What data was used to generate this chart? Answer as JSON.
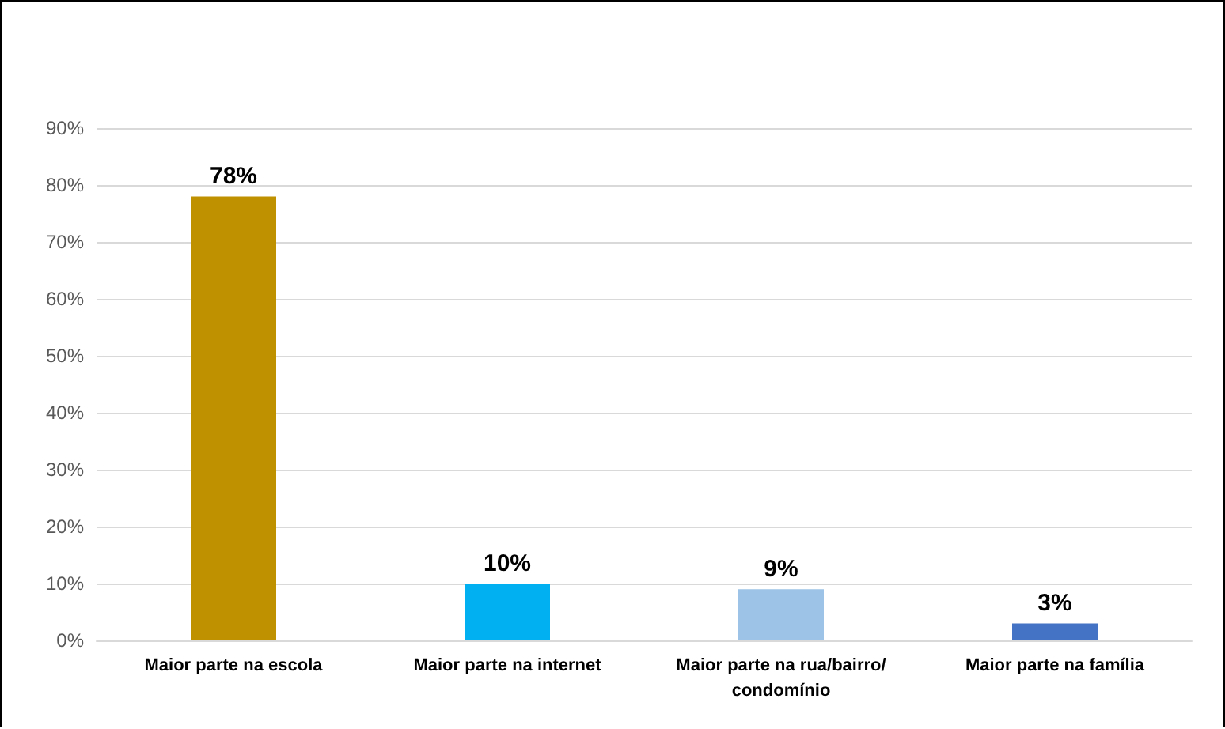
{
  "chart_data": {
    "type": "bar",
    "categories": [
      "Maior parte na escola",
      "Maior parte na internet",
      "Maior parte na rua/bairro/condomínio",
      "Maior parte na família"
    ],
    "values": [
      78,
      10,
      9,
      3
    ],
    "colors": [
      "#bf9000",
      "#00b0f0",
      "#9dc3e6",
      "#4472c4"
    ],
    "value_labels": [
      "78%",
      "10%",
      "9%",
      "3%"
    ],
    "ylim": [
      0,
      90
    ],
    "yticks": [
      {
        "value": 0,
        "label": "0%"
      },
      {
        "value": 10,
        "label": "10%"
      },
      {
        "value": 20,
        "label": "20%"
      },
      {
        "value": 30,
        "label": "30%"
      },
      {
        "value": 40,
        "label": "40%"
      },
      {
        "value": 50,
        "label": "50%"
      },
      {
        "value": 60,
        "label": "60%"
      },
      {
        "value": 70,
        "label": "70%"
      },
      {
        "value": 80,
        "label": "80%"
      },
      {
        "value": 90,
        "label": "90%"
      }
    ],
    "grid": "y"
  }
}
